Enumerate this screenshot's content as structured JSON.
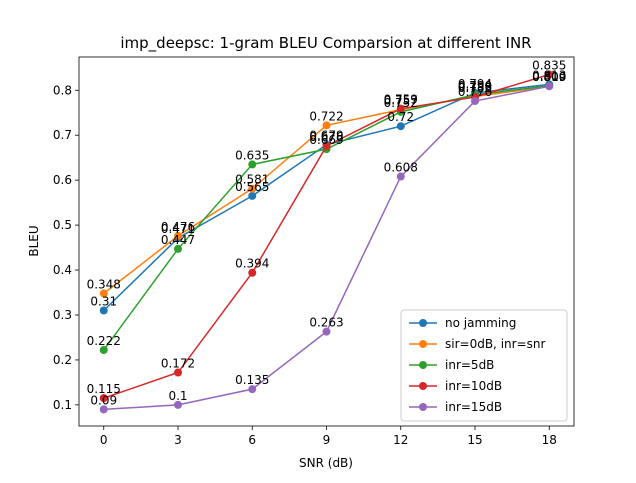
{
  "chart_data": {
    "type": "line",
    "title": "imp_deepsc: 1-gram BLEU Comparsion at different INR",
    "xlabel": "SNR (dB)",
    "ylabel": "BLEU",
    "x": [
      0,
      3,
      6,
      9,
      12,
      15,
      18
    ],
    "x_ticks": [
      "0",
      "3",
      "6",
      "9",
      "12",
      "15",
      "18"
    ],
    "y_ticks": [
      "0.1",
      "0.2",
      "0.3",
      "0.4",
      "0.5",
      "0.6",
      "0.7",
      "0.8"
    ],
    "y_tick_values": [
      0.1,
      0.2,
      0.3,
      0.4,
      0.5,
      0.6,
      0.7,
      0.8
    ],
    "xlim": [
      -1,
      19
    ],
    "ylim": [
      0.053,
      0.874
    ],
    "grid": false,
    "legend_position": "lower-right",
    "series": [
      {
        "name": "no jamming",
        "color": "#1f77b4",
        "values": [
          0.31,
          0.471,
          0.565,
          0.679,
          0.72,
          0.794,
          0.813
        ],
        "labels": [
          "0.31",
          "0.471",
          "0.565",
          "0.679",
          "0.72",
          "0.794",
          "0.813"
        ]
      },
      {
        "name": "sir=0dB, inr=snr",
        "color": "#ff7f0e",
        "values": [
          0.348,
          0.476,
          0.581,
          0.722,
          0.757,
          0.786,
          0.809
        ],
        "labels": [
          "0.348",
          "0.476",
          "0.581",
          "0.722",
          "0.757",
          "0.786",
          "0.809"
        ]
      },
      {
        "name": "inr=5dB",
        "color": "#2ca02c",
        "values": [
          0.222,
          0.447,
          0.635,
          0.669,
          0.752,
          0.79,
          0.81
        ],
        "labels": [
          "0.222",
          "0.447",
          "0.635",
          "0.669",
          "0.752",
          "0.790",
          "0.810"
        ]
      },
      {
        "name": "inr=10dB",
        "color": "#d62728",
        "values": [
          0.115,
          0.172,
          0.394,
          0.676,
          0.759,
          0.785,
          0.835
        ],
        "labels": [
          "0.115",
          "0.172",
          "0.394",
          "0.676",
          "0.759",
          "0.785",
          "0.835"
        ]
      },
      {
        "name": "inr=15dB",
        "color": "#9467bd",
        "values": [
          0.09,
          0.1,
          0.135,
          0.263,
          0.608,
          0.776,
          0.809
        ],
        "labels": [
          "0.09",
          "0.1",
          "0.135",
          "0.263",
          "0.608",
          "0.776",
          "0.809"
        ]
      }
    ]
  }
}
